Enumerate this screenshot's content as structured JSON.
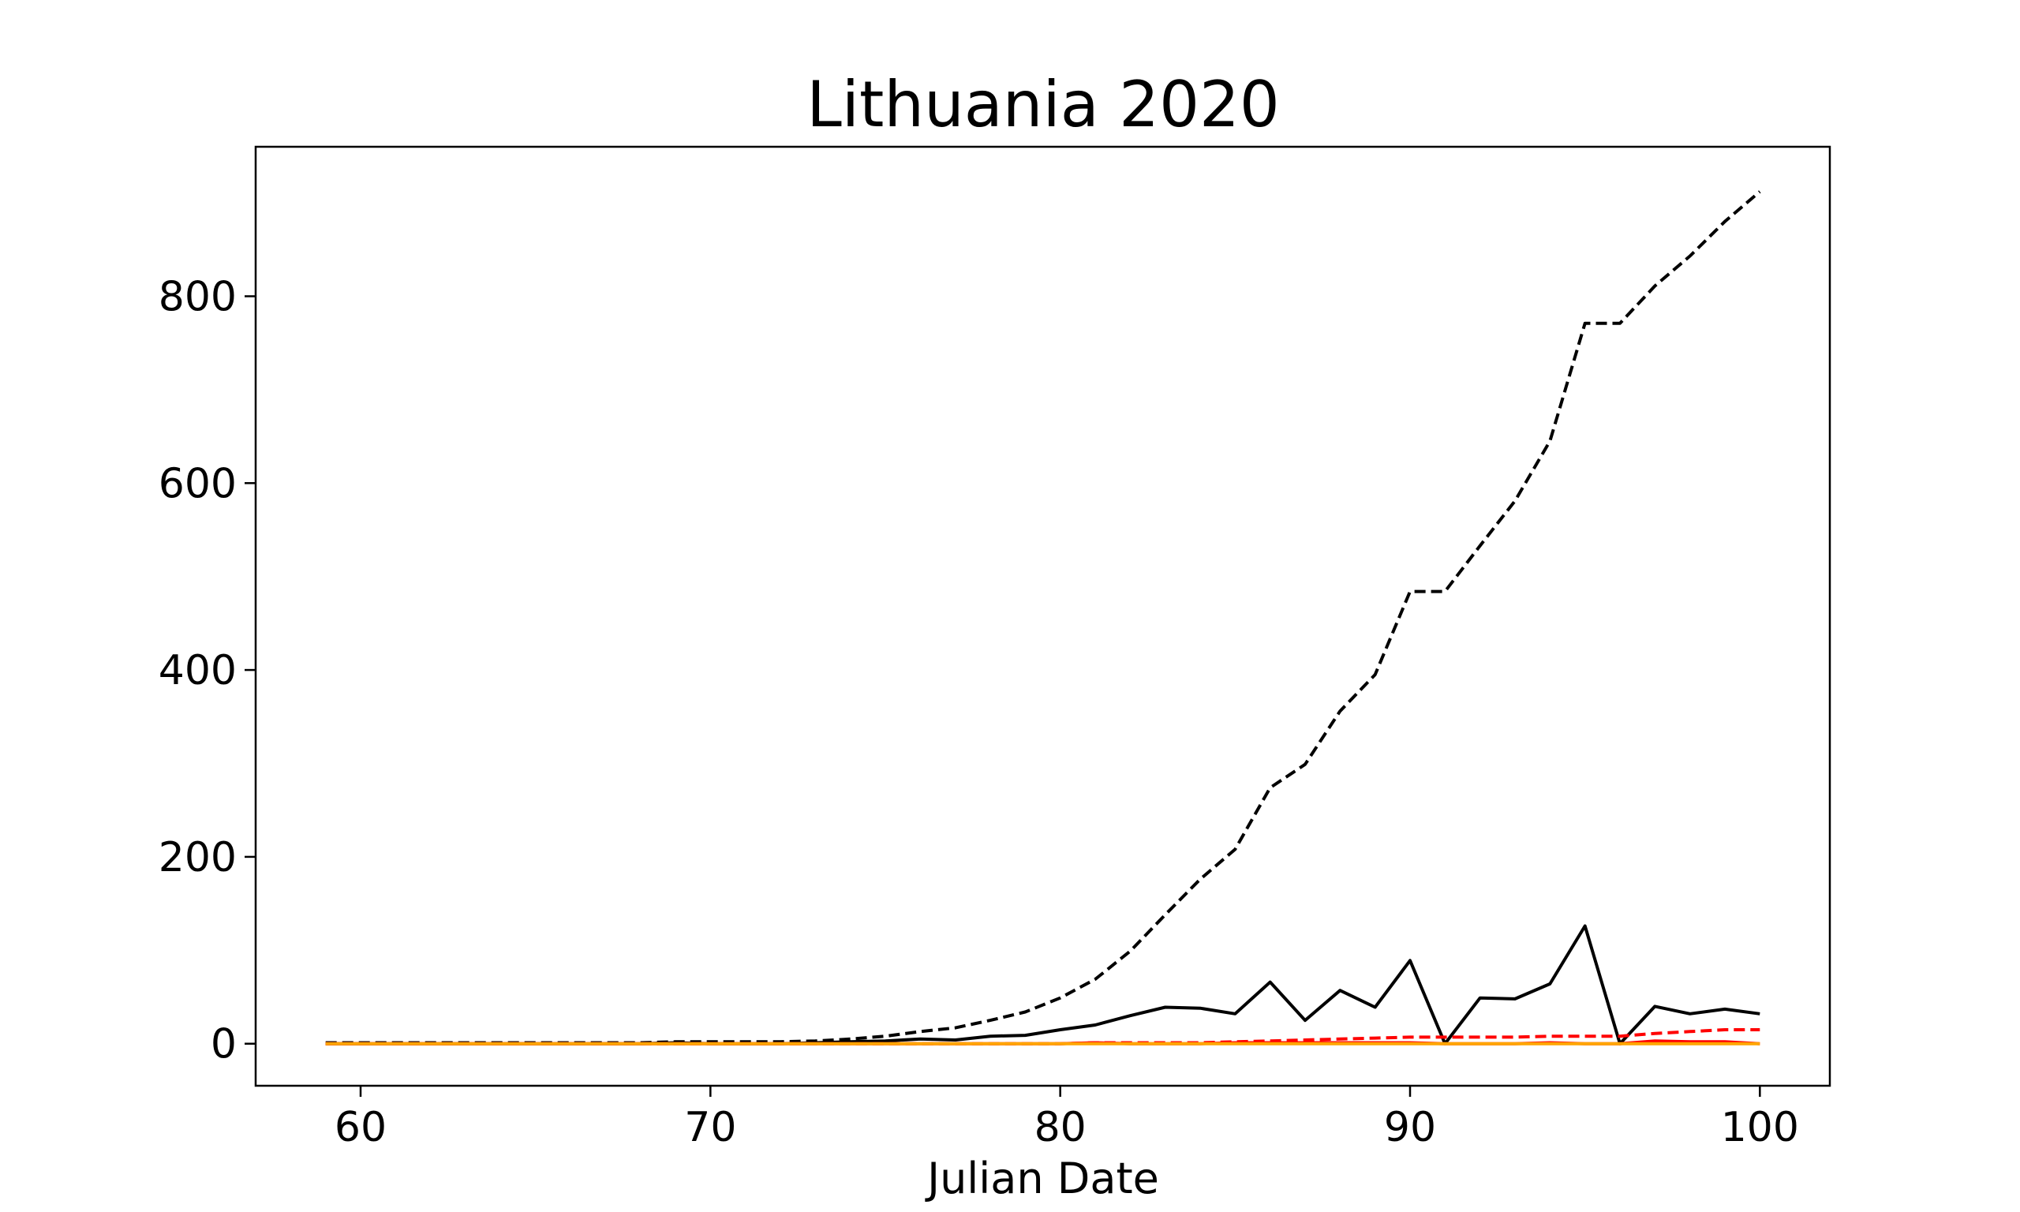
{
  "chart_data": {
    "type": "line",
    "title": "Lithuania 2020",
    "xlabel": "Julian Date",
    "ylabel": "",
    "xlim": [
      57,
      102
    ],
    "ylim": [
      -45,
      960
    ],
    "xticks": [
      60,
      70,
      80,
      90,
      100
    ],
    "yticks": [
      0,
      200,
      400,
      600,
      800
    ],
    "grid": false,
    "x": [
      59,
      60,
      61,
      62,
      63,
      64,
      65,
      66,
      67,
      68,
      69,
      70,
      71,
      72,
      73,
      74,
      75,
      76,
      77,
      78,
      79,
      80,
      81,
      82,
      83,
      84,
      85,
      86,
      87,
      88,
      89,
      90,
      91,
      92,
      93,
      94,
      95,
      96,
      97,
      98,
      99,
      100
    ],
    "series": [
      {
        "color": "#000000",
        "style": "dashed",
        "values": [
          1,
          1,
          1,
          1,
          1,
          1,
          1,
          1,
          1,
          1,
          2,
          2,
          2,
          2,
          3,
          5,
          8,
          13,
          17,
          25,
          34,
          49,
          69,
          99,
          138,
          176,
          208,
          274,
          299,
          356,
          395,
          484,
          484,
          533,
          581,
          645,
          771,
          771,
          811,
          843,
          880,
          912
        ]
      },
      {
        "color": "#000000",
        "style": "solid",
        "values": [
          0,
          0,
          0,
          0,
          0,
          0,
          0,
          0,
          0,
          0,
          1,
          0,
          0,
          0,
          1,
          2,
          3,
          5,
          4,
          8,
          9,
          15,
          20,
          30,
          39,
          38,
          32,
          66,
          25,
          57,
          39,
          89,
          0,
          49,
          48,
          64,
          126,
          0,
          40,
          32,
          37,
          32
        ]
      },
      {
        "color": "#ff0000",
        "style": "dashed",
        "values": [
          0,
          0,
          0,
          0,
          0,
          0,
          0,
          0,
          0,
          0,
          0,
          0,
          0,
          0,
          0,
          0,
          0,
          0,
          0,
          0,
          0,
          0,
          1,
          1,
          1,
          1,
          2,
          3,
          4,
          5,
          6,
          7,
          7,
          7,
          7,
          8,
          8,
          8,
          11,
          13,
          15,
          15
        ]
      },
      {
        "color": "#ff0000",
        "style": "solid",
        "values": [
          0,
          0,
          0,
          0,
          0,
          0,
          0,
          0,
          0,
          0,
          0,
          0,
          0,
          0,
          0,
          0,
          0,
          0,
          0,
          0,
          0,
          0,
          1,
          0,
          0,
          0,
          1,
          1,
          1,
          1,
          1,
          1,
          0,
          0,
          0,
          1,
          0,
          0,
          3,
          2,
          2,
          0
        ]
      },
      {
        "color": "#ffa500",
        "style": "solid",
        "values": [
          0,
          0,
          0,
          0,
          0,
          0,
          0,
          0,
          0,
          0,
          0,
          0,
          0,
          0,
          0,
          0,
          0,
          0,
          0,
          0,
          0,
          0,
          0,
          0,
          0,
          0,
          0,
          0,
          0,
          0,
          0,
          0,
          0,
          0,
          0,
          0,
          0,
          0,
          0,
          0,
          0,
          0
        ]
      }
    ]
  }
}
